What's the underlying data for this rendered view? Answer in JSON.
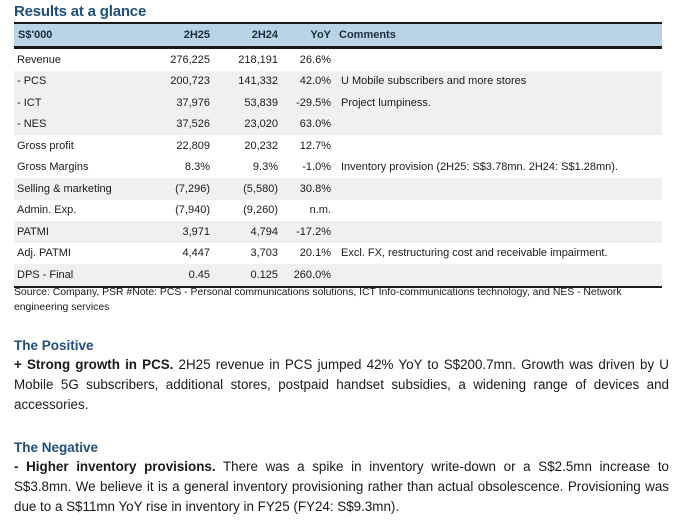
{
  "title": "Results at a glance",
  "table": {
    "headers": [
      "S$'000",
      "2H25",
      "2H24",
      "YoY",
      "Comments"
    ],
    "rows": [
      {
        "label": "Revenue",
        "h25": "276,225",
        "h24": "218,191",
        "yoy": "26.6%",
        "comment": ""
      },
      {
        "label": " - PCS",
        "h25": "200,723",
        "h24": "141,332",
        "yoy": "42.0%",
        "comment": "U Mobile subscribers and more stores"
      },
      {
        "label": " - ICT",
        "h25": "37,976",
        "h24": "53,839",
        "yoy": "-29.5%",
        "comment": "Project lumpiness."
      },
      {
        "label": " - NES",
        "h25": "37,526",
        "h24": "23,020",
        "yoy": "63.0%",
        "comment": ""
      },
      {
        "label": "Gross profit",
        "h25": "22,809",
        "h24": "20,232",
        "yoy": "12.7%",
        "comment": ""
      },
      {
        "label": "Gross Margins",
        "h25": "8.3%",
        "h24": "9.3%",
        "yoy": "-1.0%",
        "comment": "Inventory provision (2H25: S$3.78mn. 2H24: S$1.28mn)."
      },
      {
        "label": "Selling & marketing",
        "h25": "(7,296)",
        "h24": "(5,580)",
        "yoy": "30.8%",
        "comment": ""
      },
      {
        "label": "Admin. Exp.",
        "h25": "(7,940)",
        "h24": "(9,260)",
        "yoy": "n.m.",
        "comment": ""
      },
      {
        "label": "PATMI",
        "h25": "3,971",
        "h24": "4,794",
        "yoy": "-17.2%",
        "comment": ""
      },
      {
        "label": "Adj. PATMI",
        "h25": "4,447",
        "h24": "3,703",
        "yoy": "20.1%",
        "comment": "Excl. FX, restructuring cost and receivable impairment."
      },
      {
        "label": "DPS - Final",
        "h25": "0.45",
        "h24": "0.125",
        "yoy": "260.0%",
        "comment": ""
      }
    ]
  },
  "source_note": "Source: Company, PSR #Note: PCS - Personal communications solutions, ICT Info-communications technology, and NES - Network engineering services",
  "positive": {
    "heading": "The Positive",
    "lead": "+ Strong growth in PCS.",
    "body": " 2H25 revenue in PCS jumped 42% YoY to S$200.7mn. Growth was driven by U Mobile 5G subscribers, additional stores, postpaid handset subsidies, a widening range of devices and accessories."
  },
  "negative": {
    "heading": "The Negative",
    "lead": "- Higher inventory provisions.",
    "body": " There was a spike in inventory write-down or a S$2.5mn increase to S$3.8mn. We believe it is a general inventory provisioning rather than actual obsolescence. Provisioning was due to a S$11mn YoY rise in inventory in FY25 (FY24: S$9.3mn)."
  },
  "colors": {
    "heading": "#1f4e79",
    "table_header_bg": "#b8d4e5",
    "row_shade": "#f0f0f0"
  }
}
